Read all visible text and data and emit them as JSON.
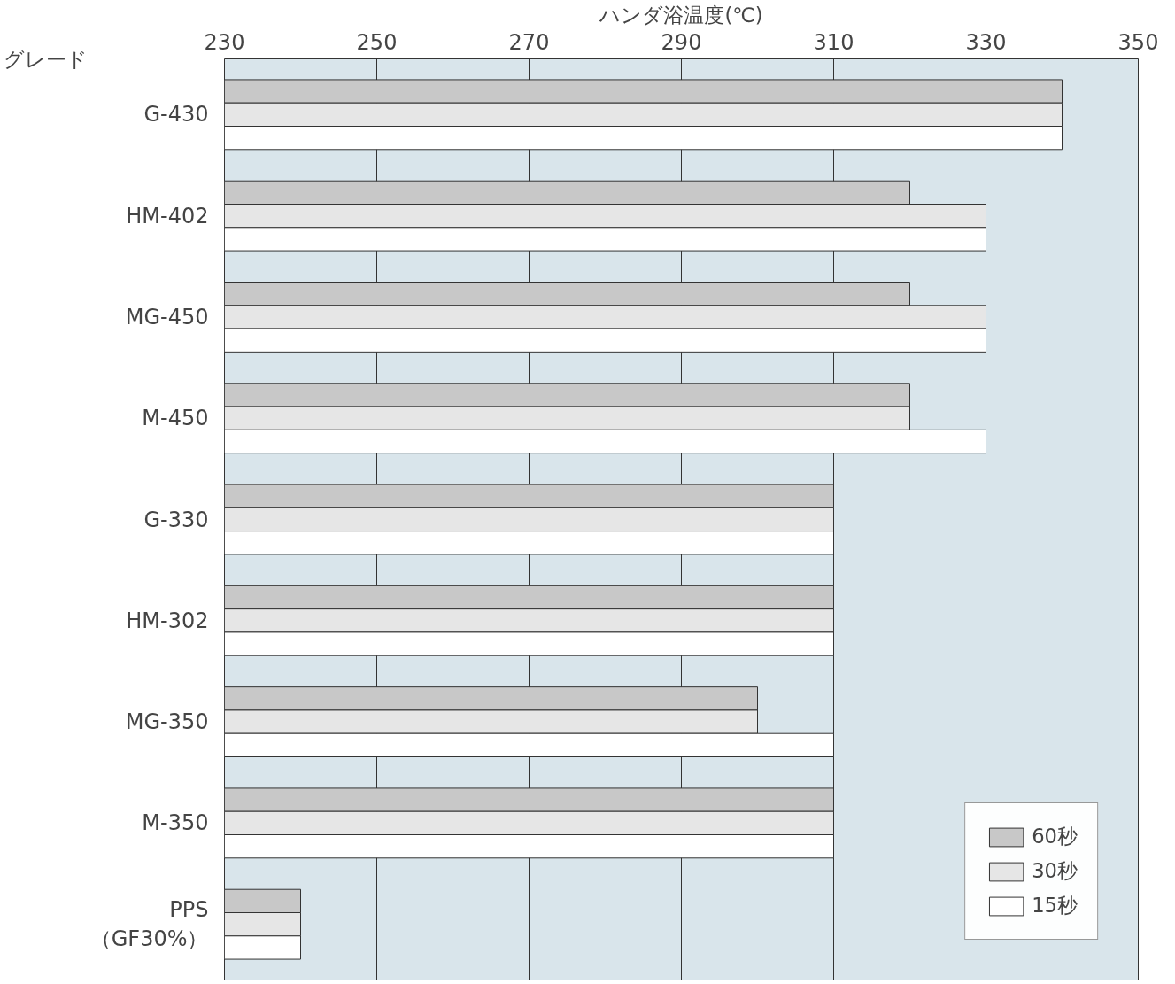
{
  "chart_data": {
    "type": "bar",
    "orientation": "horizontal",
    "xlabel": "ハンダ浴温度(℃)",
    "ylabel": "グレード",
    "categories": [
      "G-430",
      "HM-402",
      "MG-450",
      "M-450",
      "G-330",
      "HM-302",
      "MG-350",
      "M-350",
      "PPS\n（GF30%）"
    ],
    "series": [
      {
        "name": "60秒",
        "color": "#c8c8c8",
        "values": [
          340,
          320,
          320,
          320,
          310,
          310,
          300,
          310,
          240
        ]
      },
      {
        "name": "30秒",
        "color": "#e6e6e6",
        "values": [
          340,
          330,
          330,
          320,
          310,
          310,
          300,
          310,
          240
        ]
      },
      {
        "name": "15秒",
        "color": "#ffffff",
        "values": [
          340,
          330,
          330,
          330,
          310,
          310,
          310,
          310,
          240
        ]
      }
    ],
    "xlim": [
      230,
      350
    ],
    "xticks": [
      230,
      250,
      270,
      290,
      310,
      330,
      350
    ],
    "grid": "x",
    "legend": "bottom right"
  }
}
